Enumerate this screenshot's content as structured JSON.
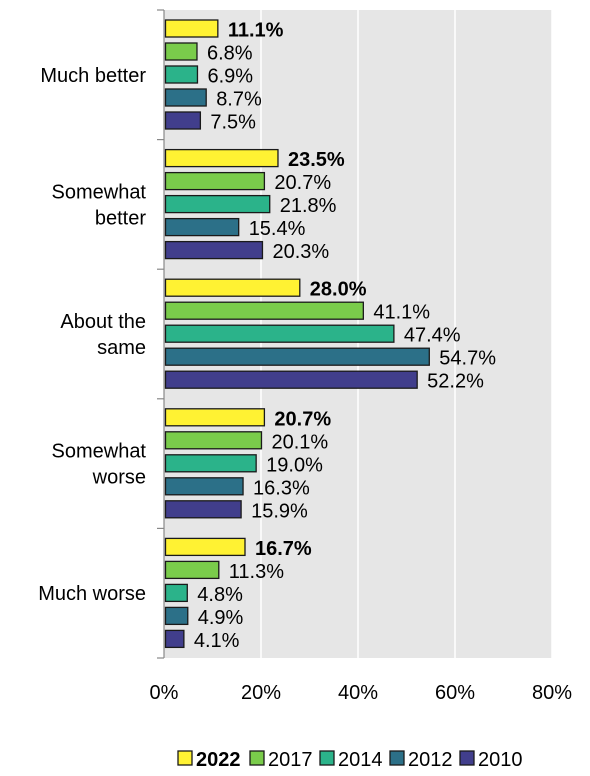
{
  "chart_data": {
    "type": "bar",
    "orientation": "horizontal",
    "categories": [
      [
        "Much better"
      ],
      [
        "Somewhat",
        "better"
      ],
      [
        "About the",
        "same"
      ],
      [
        "Somewhat",
        "worse"
      ],
      [
        "Much worse"
      ]
    ],
    "series": [
      {
        "name": "2022",
        "color": "#FFF233",
        "bold": true,
        "values": [
          11.1,
          23.5,
          28.0,
          20.7,
          16.7
        ],
        "labels": [
          "11.1%",
          "23.5%",
          "28.0%",
          "20.7%",
          "16.7%"
        ]
      },
      {
        "name": "2017",
        "color": "#7ACC4B",
        "bold": false,
        "values": [
          6.8,
          20.7,
          41.1,
          20.1,
          11.3
        ],
        "labels": [
          "6.8%",
          "20.7%",
          "41.1%",
          "20.1%",
          "11.3%"
        ]
      },
      {
        "name": "2014",
        "color": "#2BB38A",
        "bold": false,
        "values": [
          6.9,
          21.8,
          47.4,
          19.0,
          4.8
        ],
        "labels": [
          "6.9%",
          "21.8%",
          "47.4%",
          "19.0%",
          "4.8%"
        ]
      },
      {
        "name": "2012",
        "color": "#2C7088",
        "bold": false,
        "values": [
          8.7,
          15.4,
          54.7,
          16.3,
          4.9
        ],
        "labels": [
          "8.7%",
          "15.4%",
          "54.7%",
          "16.3%",
          "4.9%"
        ]
      },
      {
        "name": "2010",
        "color": "#413E8C",
        "bold": false,
        "values": [
          7.5,
          20.3,
          52.2,
          15.9,
          4.1
        ],
        "labels": [
          "7.5%",
          "20.3%",
          "52.2%",
          "15.9%",
          "4.1%"
        ]
      }
    ],
    "xlim": [
      0,
      80
    ],
    "xticks": [
      0,
      20,
      40,
      60,
      80
    ],
    "xtick_labels": [
      "0%",
      "20%",
      "40%",
      "60%",
      "80%"
    ],
    "grid": true,
    "plot_background": "#E6E6E6",
    "legend_placement": "bottom"
  }
}
